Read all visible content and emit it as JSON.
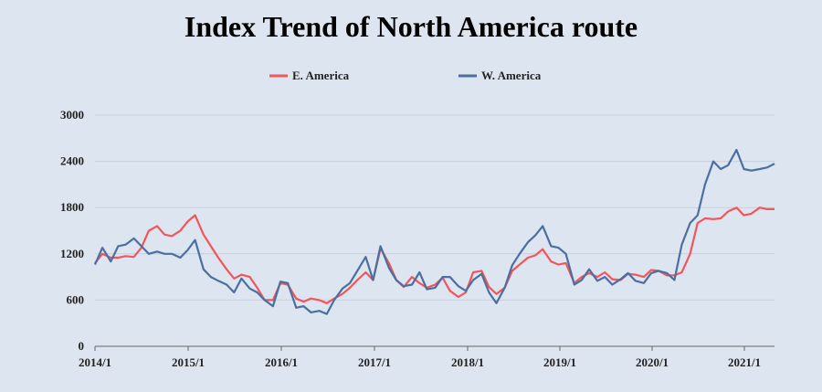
{
  "chart_data": {
    "type": "line",
    "title": "Index Trend of North America route",
    "xlabel": "",
    "ylabel": "",
    "ylim": [
      0,
      3000
    ],
    "yticks": [
      0,
      600,
      1200,
      1800,
      2400,
      3000
    ],
    "grid": true,
    "legend_position": "top",
    "xticks": [
      "2014/1",
      "2015/1",
      "2016/1",
      "2017/1",
      "2018/1",
      "2019/1",
      "2020/1",
      "2021/1"
    ],
    "x": [
      2014.0,
      2014.08,
      2014.17,
      2014.25,
      2014.33,
      2014.42,
      2014.5,
      2014.58,
      2014.67,
      2014.75,
      2014.83,
      2014.92,
      2015.0,
      2015.08,
      2015.17,
      2015.25,
      2015.33,
      2015.42,
      2015.5,
      2015.58,
      2015.67,
      2015.75,
      2015.83,
      2015.92,
      2016.0,
      2016.08,
      2016.17,
      2016.25,
      2016.33,
      2016.42,
      2016.5,
      2016.58,
      2016.67,
      2016.75,
      2016.83,
      2016.92,
      2017.0,
      2017.08,
      2017.17,
      2017.25,
      2017.33,
      2017.42,
      2017.5,
      2017.58,
      2017.67,
      2017.75,
      2017.83,
      2017.92,
      2018.0,
      2018.08,
      2018.17,
      2018.25,
      2018.33,
      2018.42,
      2018.5,
      2018.58,
      2018.67,
      2018.75,
      2018.83,
      2018.92,
      2019.0,
      2019.08,
      2019.17,
      2019.25,
      2019.33,
      2019.42,
      2019.5,
      2019.58,
      2019.67,
      2019.75,
      2019.83,
      2019.92,
      2020.0,
      2020.08,
      2020.17,
      2020.25,
      2020.33,
      2020.42,
      2020.5,
      2020.58,
      2020.67,
      2020.75,
      2020.83,
      2020.92,
      2021.0,
      2021.08,
      2021.17,
      2021.25,
      2021.33
    ],
    "series": [
      {
        "name": "E. America",
        "color": "#f0565a",
        "values": [
          1080,
          1200,
          1150,
          1150,
          1170,
          1160,
          1280,
          1500,
          1560,
          1450,
          1430,
          1500,
          1620,
          1700,
          1450,
          1300,
          1150,
          1000,
          880,
          930,
          900,
          760,
          600,
          600,
          820,
          800,
          620,
          580,
          620,
          600,
          560,
          620,
          680,
          760,
          860,
          960,
          860,
          1270,
          1080,
          860,
          770,
          900,
          820,
          760,
          800,
          890,
          720,
          640,
          700,
          960,
          980,
          770,
          680,
          760,
          980,
          1060,
          1150,
          1180,
          1260,
          1100,
          1060,
          1080,
          820,
          900,
          950,
          900,
          960,
          870,
          860,
          940,
          930,
          900,
          990,
          980,
          920,
          920,
          960,
          1200,
          1600,
          1660,
          1650,
          1660,
          1750,
          1800,
          1700,
          1720,
          1800,
          1780,
          1780
        ]
      },
      {
        "name": "W. America",
        "color": "#4a6fa0",
        "values": [
          1060,
          1280,
          1100,
          1300,
          1320,
          1400,
          1300,
          1200,
          1230,
          1200,
          1200,
          1150,
          1250,
          1380,
          1000,
          900,
          850,
          800,
          700,
          880,
          750,
          700,
          600,
          520,
          840,
          820,
          500,
          520,
          440,
          460,
          420,
          600,
          750,
          820,
          980,
          1160,
          860,
          1300,
          1020,
          860,
          780,
          800,
          960,
          740,
          760,
          900,
          900,
          780,
          720,
          860,
          940,
          700,
          560,
          760,
          1050,
          1200,
          1350,
          1440,
          1560,
          1300,
          1280,
          1200,
          800,
          860,
          1000,
          850,
          900,
          800,
          870,
          950,
          850,
          820,
          950,
          980,
          950,
          860,
          1320,
          1600,
          1700,
          2100,
          2400,
          2300,
          2350,
          2550,
          2300,
          2280,
          2300,
          2320,
          2370
        ]
      }
    ]
  }
}
